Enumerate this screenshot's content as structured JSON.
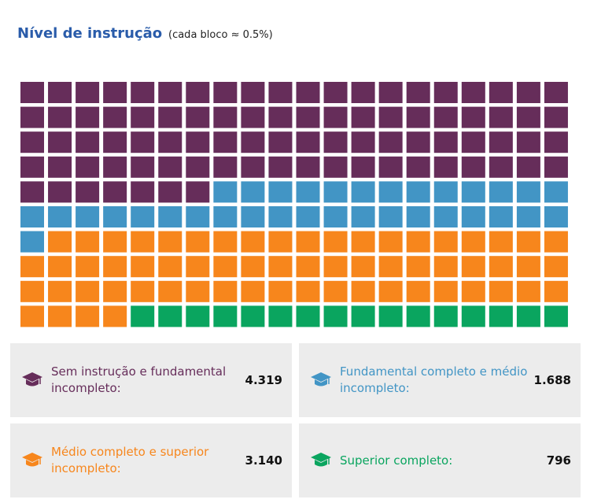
{
  "chart_data": {
    "type": "waffle",
    "title": "Nível de instrução",
    "subtitle": "(cada bloco ≈ 0.5%)",
    "series": [
      {
        "name": "Sem instrução e fundamental incompleto:",
        "color": "#662d5a",
        "values": [
          4319
        ],
        "value_labels": [
          "4.319"
        ]
      },
      {
        "name": "Fundamental completo e médio incompleto:",
        "color": "#4295c5",
        "values": [
          1688
        ],
        "value_labels": [
          "1.688"
        ]
      },
      {
        "name": "Médio completo e superior incompleto:",
        "color": "#f7861c",
        "values": [
          3140
        ],
        "value_labels": [
          "3.140"
        ]
      },
      {
        "name": "Superior completo:",
        "color": "#0aa55f",
        "values": [
          796
        ],
        "value_labels": [
          "796"
        ]
      }
    ]
  }
}
